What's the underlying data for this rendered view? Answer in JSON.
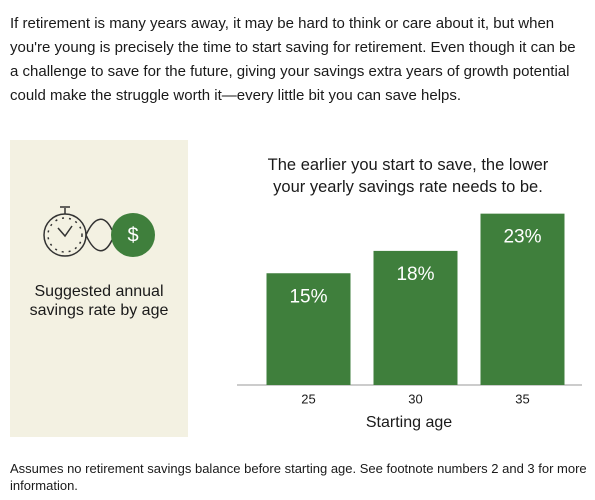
{
  "intro": "If retirement is many years away, it may be hard to think or care about it, but when you're young is precisely the time to start saving for retirement. Even though it can be a challenge to save for the future, giving your savings extra years of growth potential could make the struggle worth it—every little bit you can save helps.",
  "panel_label": "Suggested annual savings rate by age",
  "footnote": "Assumes no retirement savings balance before starting age. See footnote numbers 2 and 3 for more information.",
  "chart_data": {
    "type": "bar",
    "title": "The earlier you start to save, the lower your yearly savings rate needs to be.",
    "x_label": "Starting age",
    "categories": [
      "25",
      "30",
      "35"
    ],
    "values": [
      15,
      18,
      23
    ],
    "value_labels": [
      "15%",
      "18%",
      "23%"
    ],
    "color": "#3f7f3c"
  }
}
